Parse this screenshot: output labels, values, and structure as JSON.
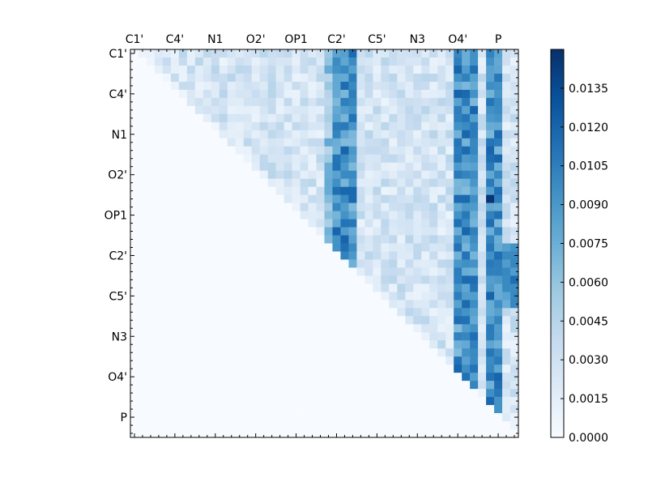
{
  "chart_data": {
    "type": "heatmap",
    "title": "",
    "xlabel": "",
    "ylabel": "",
    "matrix_size": 48,
    "x_tick_labels": [
      "C1'",
      "C4'",
      "N1",
      "O2'",
      "OP1",
      "C2'",
      "C5'",
      "N3",
      "O4'",
      "P"
    ],
    "y_tick_labels": [
      "C1'",
      "C4'",
      "N1",
      "O2'",
      "OP1",
      "C2'",
      "C5'",
      "N3",
      "O4'",
      "P"
    ],
    "colorbar": {
      "range": [
        0.0,
        0.015
      ],
      "tick_labels": [
        "0.0000",
        "0.0015",
        "0.0030",
        "0.0045",
        "0.0060",
        "0.0075",
        "0.0090",
        "0.0105",
        "0.0120",
        "0.0135"
      ],
      "colors": [
        "#f7fbff",
        "#deebf7",
        "#c6dbef",
        "#9ecae1",
        "#6baed6",
        "#4292c6",
        "#2171b5",
        "#08519c",
        "#08306b"
      ]
    },
    "structure": "upper-triangular; lower triangle and diagonal are 0",
    "strong_columns": [
      25,
      26,
      27,
      40,
      41,
      42,
      44,
      45
    ],
    "peak_value": 0.0147
  }
}
